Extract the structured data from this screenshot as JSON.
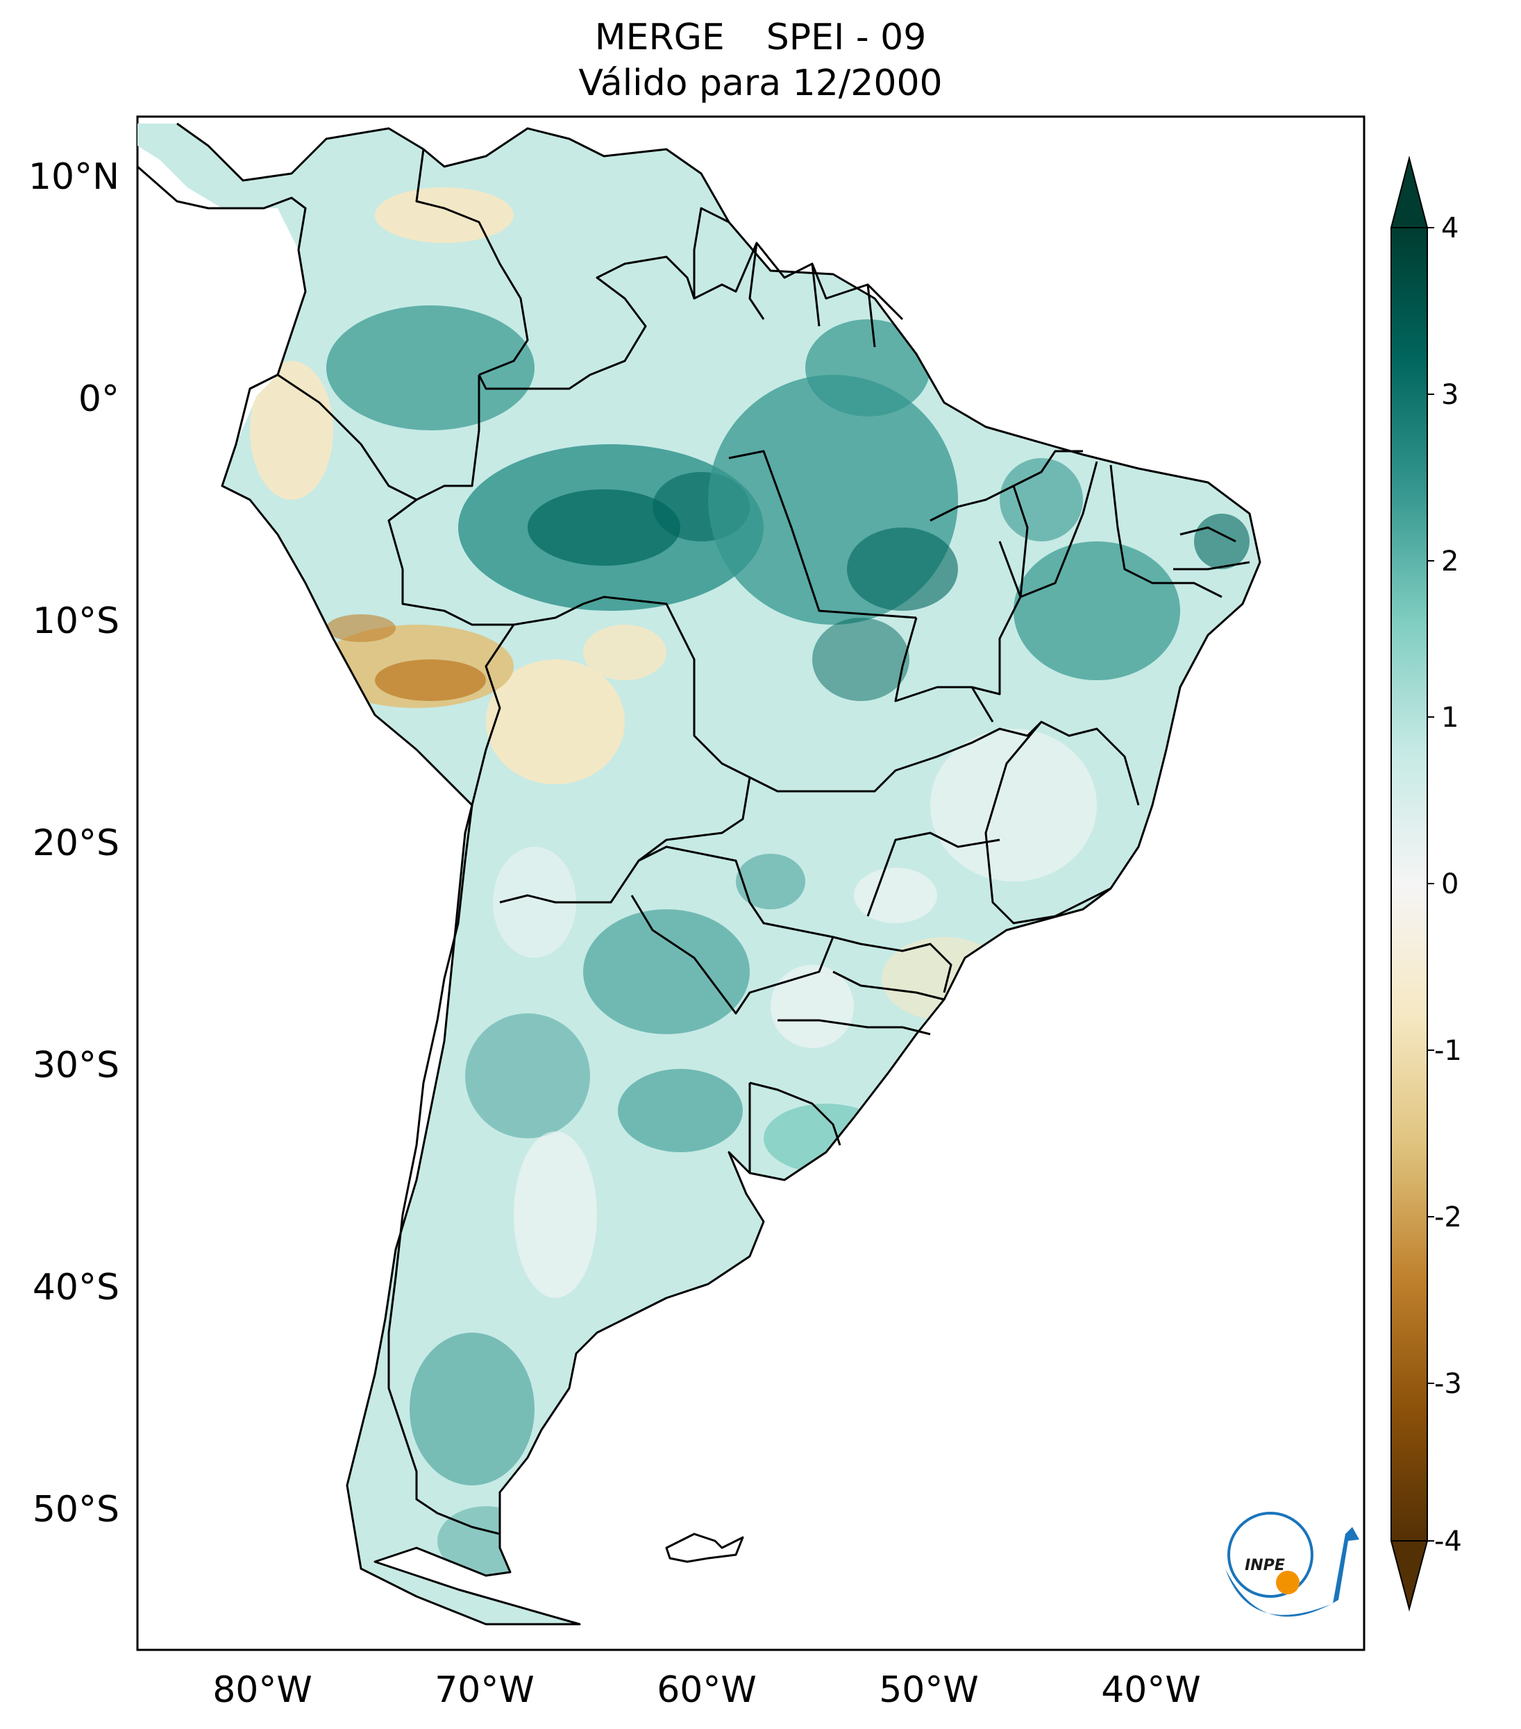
{
  "header": {
    "title_product": "MERGE",
    "title_index": "SPEI - 09",
    "subtitle": "Válido para 12/2000"
  },
  "map": {
    "region": "South America",
    "lon_range": [
      -85,
      -30
    ],
    "lat_range": [
      -56,
      13
    ],
    "lat_ticks": [
      "10°N",
      "0°",
      "10°S",
      "20°S",
      "30°S",
      "40°S",
      "50°S"
    ],
    "lat_tick_values": [
      10,
      0,
      -10,
      -20,
      -30,
      -40,
      -50
    ],
    "lon_ticks": [
      "80°W",
      "70°W",
      "60°W",
      "50°W",
      "40°W"
    ],
    "lon_tick_values": [
      -80,
      -70,
      -60,
      -50,
      -40
    ]
  },
  "colorbar": {
    "ticks": [
      "4",
      "3",
      "2",
      "1",
      "0",
      "-1",
      "-2",
      "-3",
      "-4"
    ],
    "tick_values": [
      4,
      3,
      2,
      1,
      0,
      -1,
      -2,
      -3,
      -4
    ],
    "range": [
      -4,
      4
    ],
    "extend": "both",
    "colormap": "BrBG",
    "colors": {
      "max": "#003c30",
      "high": "#01665e",
      "mid_high": "#35978f",
      "low_high": "#80cdc1",
      "light_high": "#c7eae5",
      "zero": "#f5f5f5",
      "light_low": "#f6e8c3",
      "low_low": "#dfc27d",
      "mid_low": "#bf812d",
      "low": "#8c510a",
      "min": "#543005"
    }
  },
  "logo": {
    "text": "INPE",
    "icon": "inpe-logo-icon",
    "colors": {
      "blue": "#1a75bb",
      "orange": "#f39200"
    }
  }
}
